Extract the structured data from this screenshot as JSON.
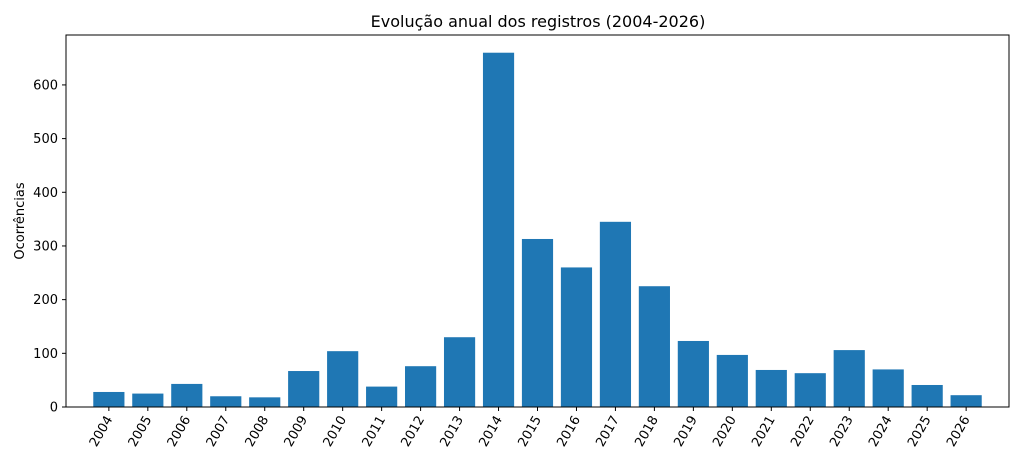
{
  "chart_data": {
    "type": "bar",
    "title": "Evolução anual dos registros (2004-2026)",
    "xlabel": "",
    "ylabel": "Ocorrências",
    "categories": [
      "2004",
      "2005",
      "2006",
      "2007",
      "2008",
      "2009",
      "2010",
      "2011",
      "2012",
      "2013",
      "2014",
      "2015",
      "2016",
      "2017",
      "2018",
      "2019",
      "2020",
      "2021",
      "2022",
      "2023",
      "2024",
      "2025",
      "2026"
    ],
    "values": [
      28,
      25,
      43,
      20,
      18,
      67,
      104,
      38,
      76,
      130,
      660,
      313,
      260,
      345,
      225,
      123,
      97,
      69,
      63,
      106,
      70,
      41,
      22
    ],
    "ylim": [
      0,
      693
    ],
    "yticks": [
      0,
      100,
      200,
      300,
      400,
      500,
      600
    ],
    "bar_color": "#1f77b4",
    "grid": false
  }
}
